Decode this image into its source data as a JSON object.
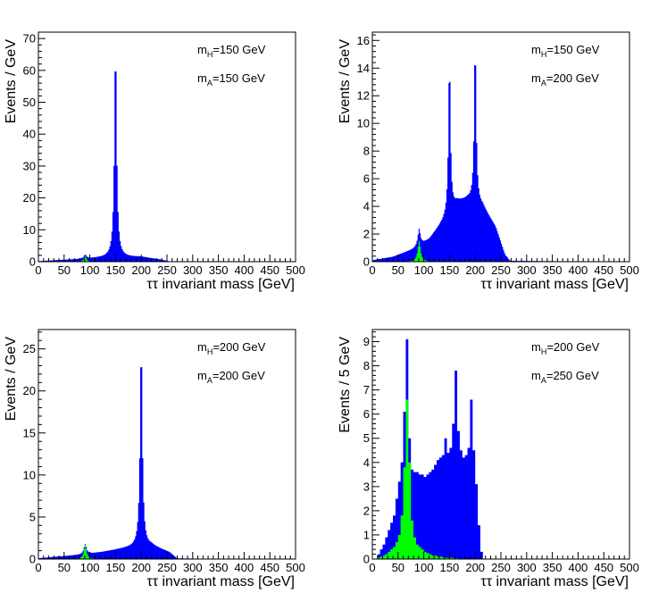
{
  "colors": {
    "signal": "#0000ff",
    "background": "#00ff00",
    "axis": "#000000"
  },
  "chart_data": [
    {
      "type": "histogram",
      "xlabel": "ττ invariant mass [GeV]",
      "ylabel": "Events / GeV",
      "xlim": [
        0,
        500
      ],
      "ylim": [
        0,
        72
      ],
      "xticks": [
        "0",
        "50",
        "100",
        "150",
        "200",
        "250",
        "300",
        "350",
        "400",
        "450",
        "500"
      ],
      "yticks": [
        "0",
        "10",
        "20",
        "30",
        "40",
        "50",
        "60",
        "70"
      ],
      "annotations": [
        {
          "base": "m",
          "sub": "H",
          "rest": "=150 GeV"
        },
        {
          "base": "m",
          "sub": "A",
          "rest": "=150 GeV"
        }
      ],
      "bin_width": 2,
      "signal_profile": {
        "continuum": [
          [
            0,
            0.15
          ],
          [
            40,
            0.5
          ],
          [
            80,
            0.8
          ],
          [
            120,
            1.2
          ],
          [
            200,
            1.5
          ],
          [
            240,
            0.6
          ],
          [
            255,
            0.05
          ],
          [
            500,
            0
          ]
        ],
        "peaks": [
          {
            "center": 150,
            "height": 67,
            "width": 2.6
          },
          {
            "center": 91,
            "height": 1.2,
            "width": 3
          }
        ]
      },
      "background_profile": {
        "peaks": [
          {
            "center": 91,
            "height": 1.6,
            "width": 3
          }
        ]
      }
    },
    {
      "type": "histogram",
      "xlabel": "ττ invariant mass [GeV]",
      "ylabel": "Events / GeV",
      "xlim": [
        0,
        500
      ],
      "ylim": [
        0,
        16.6
      ],
      "xticks": [
        "0",
        "50",
        "100",
        "150",
        "200",
        "250",
        "300",
        "350",
        "400",
        "450",
        "500"
      ],
      "yticks": [
        "0",
        "2",
        "4",
        "6",
        "8",
        "10",
        "12",
        "14",
        "16"
      ],
      "annotations": [
        {
          "base": "m",
          "sub": "H",
          "rest": "=150 GeV"
        },
        {
          "base": "m",
          "sub": "A",
          "rest": "=200 GeV"
        }
      ],
      "bin_width": 2,
      "signal_profile": {
        "continuum": [
          [
            0,
            0.1
          ],
          [
            40,
            0.35
          ],
          [
            80,
            0.9
          ],
          [
            110,
            1.6
          ],
          [
            140,
            3.0
          ],
          [
            165,
            4.3
          ],
          [
            185,
            4.5
          ],
          [
            215,
            4.0
          ],
          [
            240,
            2.5
          ],
          [
            258,
            0.5
          ],
          [
            268,
            0.05
          ],
          [
            500,
            0
          ]
        ],
        "peaks": [
          {
            "center": 150,
            "height": 11.2,
            "width": 2.3
          },
          {
            "center": 200,
            "height": 11.8,
            "width": 2.3
          },
          {
            "center": 91,
            "height": 1.2,
            "width": 3
          }
        ]
      },
      "background_profile": {
        "peaks": [
          {
            "center": 91,
            "height": 1.5,
            "width": 3.2
          }
        ]
      }
    },
    {
      "type": "histogram",
      "xlabel": "ττ invariant mass [GeV]",
      "ylabel": "Events / GeV",
      "xlim": [
        0,
        500
      ],
      "ylim": [
        0,
        27.3
      ],
      "xticks": [
        "0",
        "50",
        "100",
        "150",
        "200",
        "250",
        "300",
        "350",
        "400",
        "450",
        "500"
      ],
      "yticks": [
        "0",
        "5",
        "10",
        "15",
        "20",
        "25"
      ],
      "annotations": [
        {
          "base": "m",
          "sub": "H",
          "rest": "=200 GeV"
        },
        {
          "base": "m",
          "sub": "A",
          "rest": "=200 GeV"
        }
      ],
      "bin_width": 2,
      "signal_profile": {
        "continuum": [
          [
            0,
            0.1
          ],
          [
            40,
            0.3
          ],
          [
            80,
            0.5
          ],
          [
            120,
            0.8
          ],
          [
            170,
            1.3
          ],
          [
            220,
            1.6
          ],
          [
            255,
            0.8
          ],
          [
            270,
            0.05
          ],
          [
            500,
            0
          ]
        ],
        "peaks": [
          {
            "center": 200,
            "height": 24.5,
            "width": 2.6
          },
          {
            "center": 91,
            "height": 1.2,
            "width": 3
          }
        ]
      },
      "background_profile": {
        "peaks": [
          {
            "center": 91,
            "height": 1.7,
            "width": 3
          }
        ]
      }
    },
    {
      "type": "histogram",
      "xlabel": "ττ invariant mass [GeV]",
      "ylabel": "Events / 5 GeV",
      "xlim": [
        0,
        500
      ],
      "ylim": [
        0,
        9.5
      ],
      "xticks": [
        "0",
        "50",
        "100",
        "150",
        "200",
        "250",
        "300",
        "350",
        "400",
        "450",
        "500"
      ],
      "yticks": [
        "0",
        "1",
        "2",
        "3",
        "4",
        "5",
        "6",
        "7",
        "8",
        "9"
      ],
      "annotations": [
        {
          "base": "m",
          "sub": "H",
          "rest": "=200 GeV"
        },
        {
          "base": "m",
          "sub": "A",
          "rest": "=250 GeV"
        }
      ],
      "bin_width": 5,
      "signal_bins": [
        0,
        0,
        0.2,
        0.4,
        0.6,
        0.9,
        1.2,
        1.5,
        1.8,
        2.5,
        3.2,
        4.0,
        6.1,
        9.1,
        5.0,
        3.7,
        3.6,
        3.6,
        3.5,
        3.5,
        3.4,
        3.5,
        3.6,
        3.7,
        3.9,
        4.1,
        4.2,
        4.3,
        5.0,
        4.4,
        4.6,
        5.6,
        7.8,
        5.3,
        4.5,
        4.2,
        4.3,
        4.6,
        6.6,
        4.5,
        3.1,
        1.4,
        0.3,
        0,
        0,
        0,
        0,
        0,
        0,
        0,
        0,
        0,
        0,
        0,
        0,
        0,
        0,
        0,
        0,
        0,
        0,
        0,
        0,
        0,
        0,
        0,
        0,
        0,
        0,
        0,
        0,
        0,
        0,
        0,
        0,
        0,
        0,
        0,
        0,
        0,
        0,
        0,
        0,
        0,
        0,
        0,
        0,
        0,
        0,
        0,
        0,
        0,
        0,
        0,
        0,
        0,
        0,
        0,
        0,
        0
      ],
      "background_bins": [
        0,
        0,
        0.05,
        0.1,
        0.15,
        0.2,
        0.3,
        0.4,
        0.5,
        0.7,
        1.0,
        1.8,
        3.8,
        6.6,
        4.0,
        1.6,
        0.9,
        0.6,
        0.5,
        0.4,
        0.3,
        0.25,
        0.2,
        0.15,
        0.15,
        0.1,
        0.1,
        0.08,
        0.05,
        0.05,
        0.05,
        0.05,
        0.03,
        0.03,
        0.02,
        0.02,
        0.02,
        0.02,
        0.02,
        0.02,
        0.02,
        0,
        0,
        0,
        0,
        0,
        0,
        0,
        0,
        0,
        0,
        0,
        0,
        0,
        0,
        0,
        0,
        0,
        0,
        0,
        0,
        0,
        0,
        0,
        0,
        0,
        0,
        0,
        0,
        0,
        0,
        0,
        0,
        0,
        0,
        0,
        0,
        0,
        0,
        0,
        0,
        0,
        0,
        0,
        0,
        0,
        0,
        0,
        0,
        0,
        0,
        0,
        0,
        0,
        0,
        0,
        0,
        0,
        0,
        0,
        0,
        0
      ]
    }
  ]
}
